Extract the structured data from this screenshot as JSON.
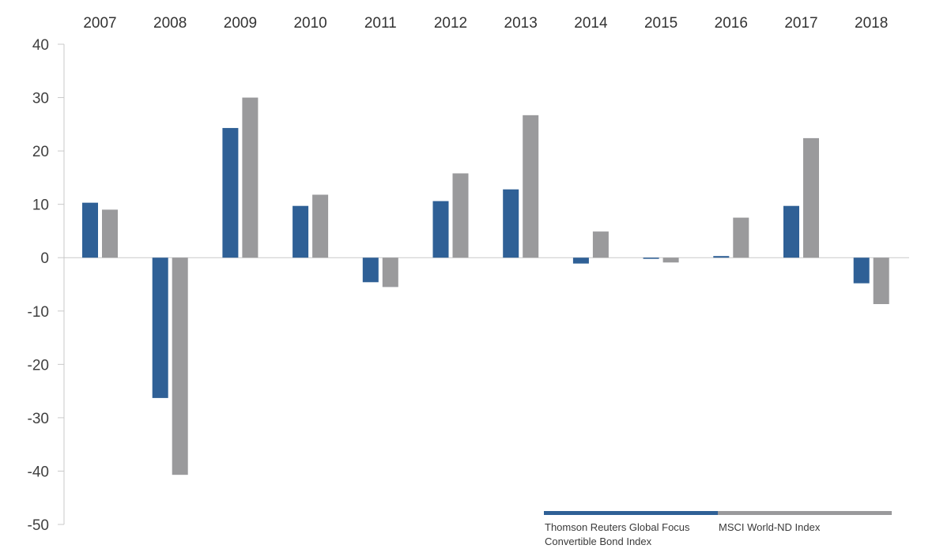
{
  "chart_data": {
    "type": "bar",
    "categories": [
      "2007",
      "2008",
      "2009",
      "2010",
      "2011",
      "2012",
      "2013",
      "2014",
      "2015",
      "2016",
      "2017",
      "2018"
    ],
    "series": [
      {
        "name": "Thomson Reuters Global Focus Convertible Bond Index",
        "legend_lines": [
          "Thomson Reuters Global Focus",
          "Convertible Bond Index"
        ],
        "color": "#2f6096",
        "values": [
          10.3,
          -26.3,
          24.3,
          9.7,
          -4.6,
          10.6,
          12.8,
          -1.1,
          -0.2,
          0.3,
          9.7,
          -4.8
        ]
      },
      {
        "name": "MSCI World-ND Index",
        "legend_lines": [
          "MSCI World-ND Index"
        ],
        "color": "#9a9a9c",
        "values": [
          9.0,
          -40.7,
          30.0,
          11.8,
          -5.5,
          15.8,
          26.7,
          4.9,
          -0.9,
          7.5,
          22.4,
          -8.7
        ]
      }
    ],
    "yticks": [
      "40",
      "30",
      "20",
      "10",
      "0",
      "-10",
      "-20",
      "-30",
      "-40",
      "-50"
    ],
    "ylim": [
      -50,
      40
    ],
    "grid": false,
    "category_labels_position": "top",
    "legend_position": "bottom-right"
  }
}
